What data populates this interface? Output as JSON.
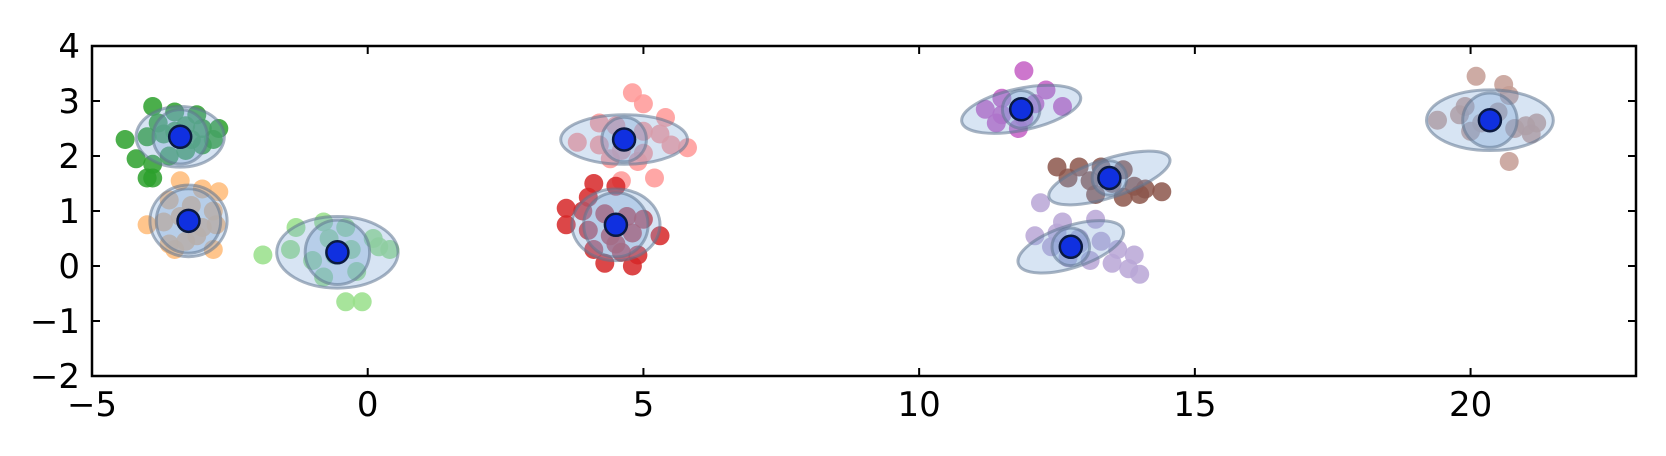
{
  "chart_data": {
    "type": "scatter",
    "title": "",
    "xlabel": "",
    "ylabel": "",
    "xlim": [
      -5,
      23
    ],
    "ylim": [
      -2,
      4
    ],
    "grid": false,
    "legend": "none",
    "x_ticks": [
      {
        "value": -5,
        "label": "−5"
      },
      {
        "value": 0,
        "label": "0"
      },
      {
        "value": 5,
        "label": "5"
      },
      {
        "value": 10,
        "label": "10"
      },
      {
        "value": 15,
        "label": "15"
      },
      {
        "value": 20,
        "label": "20"
      }
    ],
    "y_ticks": [
      {
        "value": -2,
        "label": "−2"
      },
      {
        "value": -1,
        "label": "−1"
      },
      {
        "value": 0,
        "label": "0"
      },
      {
        "value": 1,
        "label": "1"
      },
      {
        "value": 2,
        "label": "2"
      },
      {
        "value": 3,
        "label": "3"
      },
      {
        "value": 4,
        "label": "4"
      }
    ],
    "centroid_color": "#1030e0",
    "ellipse_color": "#7aa6d6",
    "clusters": [
      {
        "color": "#2ca02c",
        "center": [
          -3.4,
          2.35
        ],
        "ellipse": {
          "rx": 0.8,
          "ry": 0.55,
          "angle": 0
        },
        "points": [
          [
            -3.9,
            2.9
          ],
          [
            -3.5,
            2.8
          ],
          [
            -3.1,
            2.75
          ],
          [
            -4.4,
            2.3
          ],
          [
            -4.0,
            2.35
          ],
          [
            -3.7,
            2.4
          ],
          [
            -3.3,
            2.55
          ],
          [
            -3.0,
            2.5
          ],
          [
            -2.7,
            2.5
          ],
          [
            -4.2,
            1.95
          ],
          [
            -3.9,
            1.85
          ],
          [
            -3.6,
            2.0
          ],
          [
            -3.3,
            2.1
          ],
          [
            -3.0,
            2.2
          ],
          [
            -2.8,
            2.3
          ],
          [
            -3.5,
            2.45
          ],
          [
            -3.9,
            1.6
          ],
          [
            -4.0,
            1.6
          ],
          [
            -3.2,
            2.3
          ],
          [
            -3.8,
            2.6
          ]
        ]
      },
      {
        "color": "#ffbb78",
        "center": [
          -3.25,
          0.82
        ],
        "ellipse": {
          "rx": 0.7,
          "ry": 0.65,
          "angle": 0
        },
        "points": [
          [
            -3.4,
            1.55
          ],
          [
            -3.0,
            1.4
          ],
          [
            -2.7,
            1.35
          ],
          [
            -3.6,
            1.2
          ],
          [
            -3.2,
            1.1
          ],
          [
            -2.8,
            1.0
          ],
          [
            -4.0,
            0.75
          ],
          [
            -3.7,
            0.8
          ],
          [
            -3.4,
            0.9
          ],
          [
            -3.0,
            0.7
          ],
          [
            -2.75,
            0.75
          ],
          [
            -3.6,
            0.4
          ],
          [
            -3.3,
            0.45
          ],
          [
            -2.8,
            0.3
          ],
          [
            -3.5,
            0.3
          ],
          [
            -3.1,
            0.55
          ]
        ]
      },
      {
        "color": "#98df8a",
        "center": [
          -0.55,
          0.25
        ],
        "ellipse": {
          "rx": 1.1,
          "ry": 0.65,
          "angle": 0
        },
        "points": [
          [
            -1.9,
            0.2
          ],
          [
            -1.3,
            0.7
          ],
          [
            -0.8,
            0.8
          ],
          [
            -0.4,
            0.7
          ],
          [
            -1.4,
            0.3
          ],
          [
            -1.0,
            0.1
          ],
          [
            -0.6,
            0.2
          ],
          [
            -0.3,
            0.3
          ],
          [
            0.1,
            0.5
          ],
          [
            0.4,
            0.3
          ],
          [
            -0.8,
            -0.2
          ],
          [
            -0.2,
            -0.1
          ],
          [
            -0.4,
            -0.65
          ],
          [
            -0.1,
            -0.65
          ],
          [
            0.2,
            0.35
          ],
          [
            -0.7,
            0.5
          ]
        ]
      },
      {
        "color": "#ff9896",
        "center": [
          4.65,
          2.3
        ],
        "ellipse": {
          "rx": 1.15,
          "ry": 0.45,
          "angle": 0
        },
        "points": [
          [
            4.8,
            3.15
          ],
          [
            5.0,
            2.95
          ],
          [
            5.4,
            2.7
          ],
          [
            4.2,
            2.6
          ],
          [
            4.5,
            2.55
          ],
          [
            5.0,
            2.45
          ],
          [
            5.3,
            2.4
          ],
          [
            3.8,
            2.25
          ],
          [
            4.2,
            2.2
          ],
          [
            4.6,
            2.1
          ],
          [
            5.0,
            2.05
          ],
          [
            5.5,
            2.2
          ],
          [
            5.8,
            2.15
          ],
          [
            4.4,
            1.95
          ],
          [
            4.9,
            1.9
          ],
          [
            5.2,
            1.6
          ],
          [
            4.6,
            1.55
          ]
        ]
      },
      {
        "color": "#d62728",
        "center": [
          4.5,
          0.75
        ],
        "ellipse": {
          "rx": 0.8,
          "ry": 0.65,
          "angle": 0
        },
        "points": [
          [
            4.1,
            1.5
          ],
          [
            4.5,
            1.45
          ],
          [
            4.0,
            1.25
          ],
          [
            3.6,
            1.05
          ],
          [
            3.9,
            1.0
          ],
          [
            4.3,
            0.95
          ],
          [
            4.7,
            0.9
          ],
          [
            5.0,
            0.85
          ],
          [
            3.6,
            0.75
          ],
          [
            4.0,
            0.65
          ],
          [
            4.4,
            0.55
          ],
          [
            4.8,
            0.6
          ],
          [
            5.3,
            0.55
          ],
          [
            4.1,
            0.3
          ],
          [
            4.6,
            0.25
          ],
          [
            4.9,
            0.2
          ],
          [
            4.3,
            0.05
          ],
          [
            4.8,
            0.0
          ],
          [
            4.5,
            0.4
          ]
        ]
      },
      {
        "color": "#c45ec4",
        "center": [
          11.85,
          2.85
        ],
        "ellipse": {
          "rx": 1.1,
          "ry": 0.38,
          "angle": -12
        },
        "points": [
          [
            11.9,
            3.55
          ],
          [
            12.3,
            3.2
          ],
          [
            11.5,
            3.05
          ],
          [
            12.1,
            2.95
          ],
          [
            12.6,
            2.9
          ],
          [
            11.2,
            2.85
          ],
          [
            11.5,
            2.75
          ],
          [
            11.9,
            2.7
          ],
          [
            11.4,
            2.6
          ],
          [
            11.8,
            2.5
          ]
        ]
      },
      {
        "color": "#8c564b",
        "center": [
          13.45,
          1.6
        ],
        "ellipse": {
          "rx": 1.15,
          "ry": 0.35,
          "angle": -18
        },
        "points": [
          [
            12.5,
            1.8
          ],
          [
            12.9,
            1.8
          ],
          [
            13.3,
            1.8
          ],
          [
            13.7,
            1.75
          ],
          [
            12.7,
            1.6
          ],
          [
            13.1,
            1.55
          ],
          [
            13.5,
            1.5
          ],
          [
            13.9,
            1.45
          ],
          [
            14.1,
            1.4
          ],
          [
            14.4,
            1.35
          ],
          [
            13.2,
            1.3
          ],
          [
            13.7,
            1.25
          ],
          [
            14.0,
            1.3
          ]
        ]
      },
      {
        "color": "#b9a6d6",
        "center": [
          12.75,
          0.35
        ],
        "ellipse": {
          "rx": 1.0,
          "ry": 0.38,
          "angle": -18
        },
        "points": [
          [
            12.2,
            1.15
          ],
          [
            12.6,
            0.8
          ],
          [
            13.2,
            0.85
          ],
          [
            12.5,
            0.6
          ],
          [
            12.1,
            0.55
          ],
          [
            12.9,
            0.5
          ],
          [
            13.3,
            0.45
          ],
          [
            12.4,
            0.35
          ],
          [
            13.6,
            0.3
          ],
          [
            13.9,
            0.2
          ],
          [
            12.7,
            0.15
          ],
          [
            13.1,
            0.1
          ],
          [
            13.5,
            0.05
          ],
          [
            13.8,
            -0.05
          ],
          [
            14.0,
            -0.15
          ],
          [
            12.9,
            0.4
          ]
        ]
      },
      {
        "color": "#c49c94",
        "center": [
          20.35,
          2.65
        ],
        "ellipse": {
          "rx": 1.15,
          "ry": 0.55,
          "angle": 0
        },
        "points": [
          [
            20.1,
            3.45
          ],
          [
            20.6,
            3.3
          ],
          [
            20.7,
            3.1
          ],
          [
            19.9,
            2.9
          ],
          [
            20.5,
            2.8
          ],
          [
            19.4,
            2.65
          ],
          [
            19.8,
            2.75
          ],
          [
            20.2,
            2.6
          ],
          [
            20.8,
            2.5
          ],
          [
            21.2,
            2.6
          ],
          [
            21.1,
            2.4
          ],
          [
            20.0,
            2.45
          ],
          [
            20.7,
            1.9
          ],
          [
            21.0,
            2.55
          ]
        ]
      }
    ]
  }
}
